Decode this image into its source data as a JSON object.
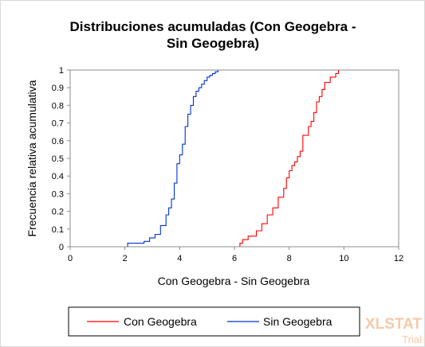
{
  "chart_data": {
    "type": "line",
    "title_lines": [
      "Distribuciones acumuladas (Con Geogebra -",
      "Sin Geogebra)"
    ],
    "xlabel": "Con Geogebra  - Sin Geogebra",
    "ylabel": "Frecuencia relativa acumulativa",
    "xlim": [
      0,
      12
    ],
    "ylim": [
      0,
      1
    ],
    "x_ticks": [
      "0",
      "2",
      "4",
      "6",
      "8",
      "10",
      "12"
    ],
    "y_ticks": [
      "0",
      "0.1",
      "0.2",
      "0.3",
      "0.4",
      "0.5",
      "0.6",
      "0.7",
      "0.8",
      "0.9",
      "1"
    ],
    "step": true,
    "grid": false,
    "legend_position": "bottom",
    "series": [
      {
        "name": "Con Geogebra",
        "color": "#ff0000",
        "x": [
          6.2,
          6.3,
          6.5,
          6.8,
          7.0,
          7.2,
          7.4,
          7.6,
          7.8,
          7.9,
          8.0,
          8.1,
          8.2,
          8.3,
          8.4,
          8.5,
          8.7,
          8.8,
          8.9,
          9.0,
          9.1,
          9.2,
          9.3,
          9.5,
          9.7,
          9.8
        ],
        "y": [
          0.02,
          0.04,
          0.06,
          0.09,
          0.13,
          0.18,
          0.22,
          0.28,
          0.33,
          0.39,
          0.43,
          0.46,
          0.48,
          0.51,
          0.54,
          0.63,
          0.68,
          0.71,
          0.76,
          0.82,
          0.85,
          0.89,
          0.93,
          0.96,
          0.98,
          1.0
        ]
      },
      {
        "name": "Sin Geogebra",
        "color": "#0033cc",
        "x": [
          2.1,
          2.7,
          2.9,
          3.1,
          3.3,
          3.5,
          3.6,
          3.7,
          3.8,
          3.9,
          4.0,
          4.1,
          4.2,
          4.3,
          4.4,
          4.5,
          4.6,
          4.7,
          4.8,
          4.9,
          5.0,
          5.1,
          5.2,
          5.3,
          5.4
        ],
        "y": [
          0.02,
          0.03,
          0.05,
          0.07,
          0.12,
          0.18,
          0.22,
          0.27,
          0.36,
          0.47,
          0.52,
          0.58,
          0.68,
          0.75,
          0.8,
          0.85,
          0.88,
          0.9,
          0.92,
          0.94,
          0.96,
          0.97,
          0.98,
          0.99,
          1.0
        ]
      }
    ]
  },
  "watermark": {
    "main": "XLSTAT",
    "sub": "Trial",
    "color": "#f6c9a8"
  }
}
